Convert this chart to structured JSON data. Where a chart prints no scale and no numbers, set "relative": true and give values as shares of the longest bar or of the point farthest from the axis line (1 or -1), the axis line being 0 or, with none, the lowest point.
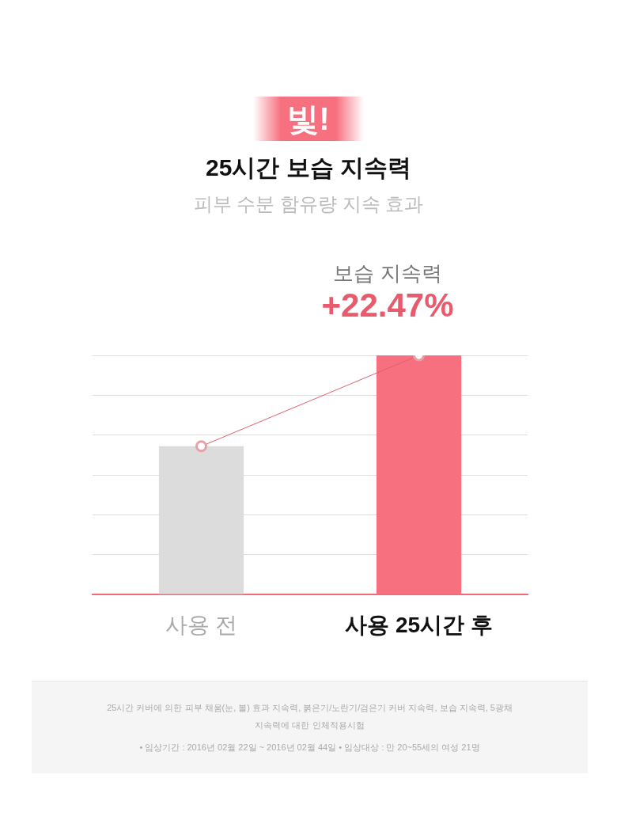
{
  "chart_data": {
    "type": "bar",
    "title": "25시간 보습 지속력",
    "subtitle": "피부 수분 함유량 지속 효과",
    "categories": [
      "사용 전",
      "사용 25시간 후"
    ],
    "series": [
      {
        "colors": [
          "#dcdcdc",
          "#f7707f"
        ],
        "values": [
          0.62,
          1
        ]
      },
      {
        "type": "line",
        "color": "#e0606e",
        "values": [
          0.62,
          1
        ],
        "marker": "circle"
      }
    ],
    "relative": true,
    "grid": "y",
    "legend": false,
    "annotations": [
      "빛!",
      "보습 지속력",
      "+22.47%",
      "25시간 커버에 의한 피부 채움(눈, 볼) 효과 지속력, 붉은기/노란기/검은기 커버 지속력, 보습 지속력, 5광채 지속력에 대한 인체적용시험",
      "• 임상기간 : 2016년 02월 22일 ~ 2016년 02월 44일 • 임상대상 : 만 20~55세의 여성 21명"
    ]
  }
}
